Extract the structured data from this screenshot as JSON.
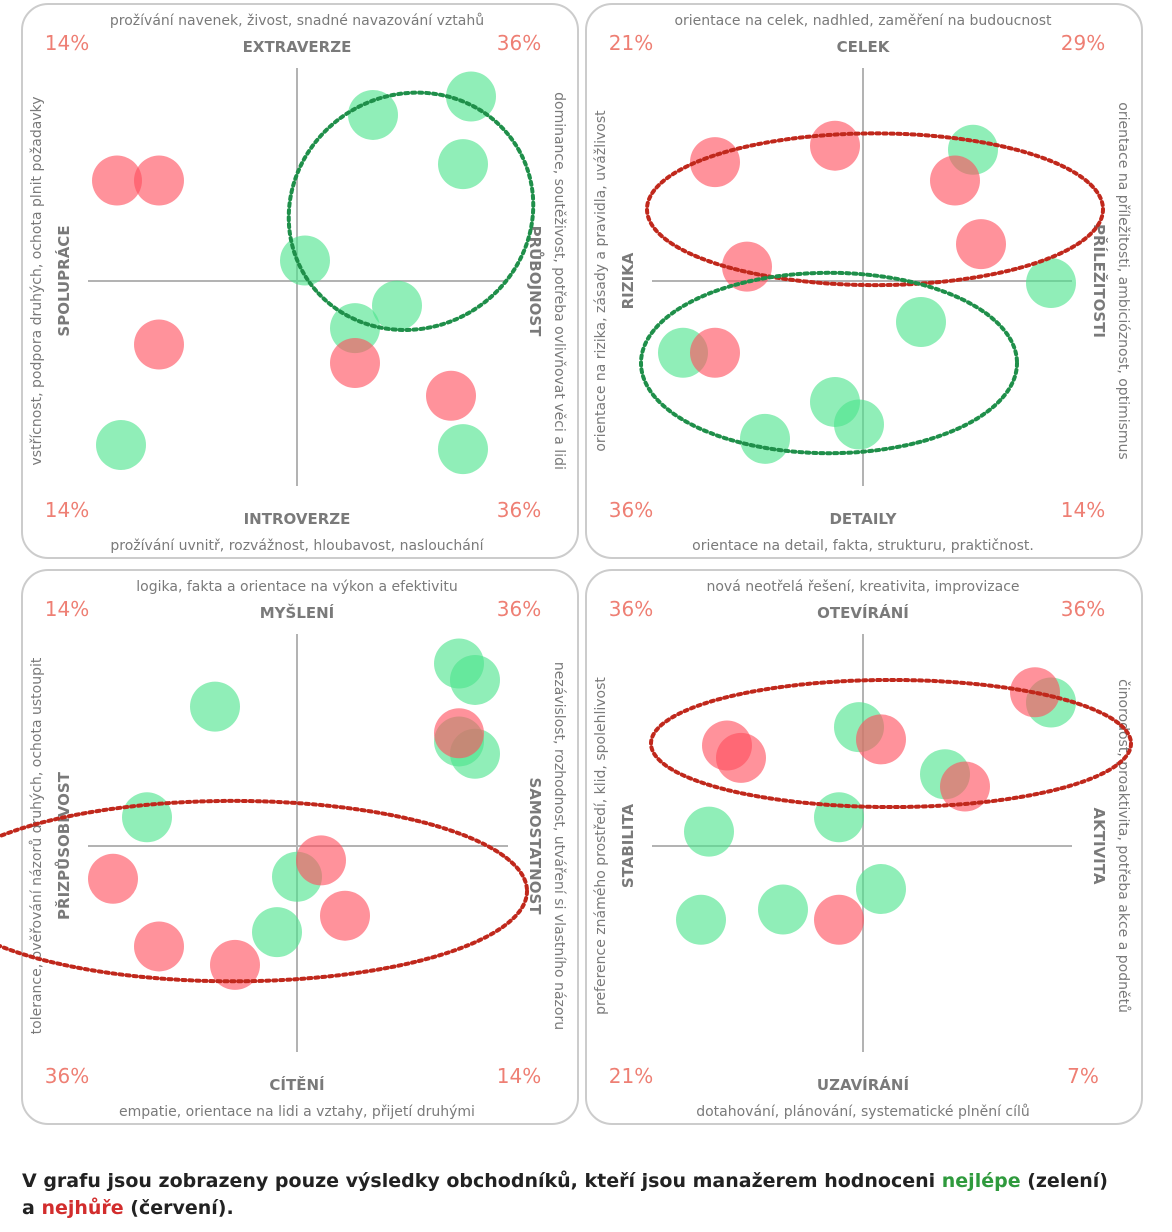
{
  "colors": {
    "best_point": "#4ce38c",
    "worst_point": "#ff4f5e",
    "best_outline": "#1f8f4a",
    "worst_outline": "#c0281c",
    "percent_text": "#ee7f74",
    "axis_text": "#7a7a7a",
    "panel_border": "#cccccc"
  },
  "chart_data": [
    {
      "type": "scatter",
      "axis_top": "EXTRAVERZE",
      "axis_bottom": "INTROVERZE",
      "axis_left": "SPOLUPRÁCE",
      "axis_right": "PRŮBOJNOST",
      "desc_top": "prožívání navenek, živost, snadné navazování vztahů",
      "desc_bottom": "prožívání uvnitř, rozvážnost, hloubavost, naslouchání",
      "desc_left": "vstřícnost, podpora druhých, ochota plnit požadavky",
      "desc_right": "dominance, soutěživost, potřeba ovlivňovat věci a lidi",
      "pct_tl": "14%",
      "pct_tr": "36%",
      "pct_bl": "14%",
      "pct_br": "36%",
      "xlim": [
        -1,
        1
      ],
      "ylim": [
        -1,
        1
      ],
      "series": [
        {
          "group": "best",
          "points": [
            [
              0.87,
              0.9
            ],
            [
              0.38,
              0.81
            ],
            [
              0.83,
              0.57
            ],
            [
              0.04,
              0.1
            ],
            [
              0.5,
              -0.12
            ],
            [
              0.29,
              -0.23
            ],
            [
              -0.88,
              -0.8
            ],
            [
              0.83,
              -0.82
            ]
          ]
        },
        {
          "group": "worst",
          "points": [
            [
              -0.9,
              0.49
            ],
            [
              -0.69,
              0.49
            ],
            [
              -0.69,
              -0.31
            ],
            [
              0.29,
              -0.4
            ],
            [
              0.77,
              -0.56
            ]
          ]
        }
      ],
      "ellipses": [
        {
          "group": "best",
          "cx": 0.57,
          "cy": 0.34,
          "rx": 0.62,
          "ry": 0.57,
          "rotate": -30
        }
      ]
    },
    {
      "type": "scatter",
      "axis_top": "CELEK",
      "axis_bottom": "DETAILY",
      "axis_left": "RIZIKA",
      "axis_right": "PŘÍLEŽITOSTI",
      "desc_top": "orientace na celek, nadhled, zaměření na budoucnost",
      "desc_bottom": "orientace na detail, fakta, strukturu, praktičnost.",
      "desc_left": "orientace na rizika, zásady a pravidla, uvážlivost",
      "desc_right": "orientace na příležitosti, ambicióznost, optimismus",
      "pct_tl": "21%",
      "pct_tr": "29%",
      "pct_bl": "36%",
      "pct_br": "14%",
      "xlim": [
        -1,
        1
      ],
      "ylim": [
        -1,
        1
      ],
      "series": [
        {
          "group": "best",
          "points": [
            [
              0.55,
              0.64
            ],
            [
              0.94,
              -0.01
            ],
            [
              0.29,
              -0.2
            ],
            [
              -0.9,
              -0.35
            ],
            [
              -0.14,
              -0.59
            ],
            [
              -0.02,
              -0.7
            ],
            [
              -0.49,
              -0.77
            ]
          ]
        },
        {
          "group": "worst",
          "points": [
            [
              -0.74,
              0.58
            ],
            [
              -0.14,
              0.66
            ],
            [
              0.46,
              0.49
            ],
            [
              0.59,
              0.18
            ],
            [
              -0.58,
              0.07
            ],
            [
              -0.74,
              -0.35
            ]
          ]
        }
      ],
      "ellipses": [
        {
          "group": "worst",
          "cx": 0.06,
          "cy": 0.35,
          "rx": 1.14,
          "ry": 0.37,
          "rotate": 0
        },
        {
          "group": "best",
          "cx": -0.17,
          "cy": -0.4,
          "rx": 0.94,
          "ry": 0.44,
          "rotate": 0
        }
      ]
    },
    {
      "type": "scatter",
      "axis_top": "MYŠLENÍ",
      "axis_bottom": "CÍTĚNÍ",
      "axis_left": "PŘIZPŮSOBIVOST",
      "axis_right": "SAMOSTATNOST",
      "desc_top": "logika, fakta a orientace na výkon a efektivitu",
      "desc_bottom": "empatie, orientace na lidi a vztahy, přijetí druhými",
      "desc_left": "tolerance, ověřování názorů druhých, ochota ustoupit",
      "desc_right": "nezávislost, rozhodnost, utváření si vlastního názoru",
      "pct_tl": "14%",
      "pct_tr": "36%",
      "pct_bl": "36%",
      "pct_br": "14%",
      "xlim": [
        -1,
        1
      ],
      "ylim": [
        -1,
        1
      ],
      "series": [
        {
          "group": "best",
          "points": [
            [
              0.81,
              0.89
            ],
            [
              0.89,
              0.81
            ],
            [
              -0.41,
              0.68
            ],
            [
              0.81,
              0.51
            ],
            [
              0.89,
              0.45
            ],
            [
              -0.75,
              0.14
            ],
            [
              0.0,
              -0.15
            ],
            [
              -0.1,
              -0.42
            ]
          ]
        },
        {
          "group": "worst",
          "points": [
            [
              0.81,
              0.55
            ],
            [
              0.12,
              -0.07
            ],
            [
              -0.92,
              -0.16
            ],
            [
              0.24,
              -0.34
            ],
            [
              -0.69,
              -0.49
            ],
            [
              -0.31,
              -0.58
            ]
          ]
        }
      ],
      "ellipses": [
        {
          "group": "worst",
          "cx": -0.32,
          "cy": -0.22,
          "rx": 1.47,
          "ry": 0.44,
          "rotate": 0
        }
      ]
    },
    {
      "type": "scatter",
      "axis_top": "OTEVÍRÁNÍ",
      "axis_bottom": "UZAVÍRÁNÍ",
      "axis_left": "STABILITA",
      "axis_right": "AKTIVITA",
      "desc_top": "nová neotřelá řešení, kreativita, improvizace",
      "desc_bottom": "dotahování, plánování, systematické plnění cílů",
      "desc_left": "preference známého prostředí, klid, spolehlivost",
      "desc_right": "činorodost, proaktivita, potřeba akce a podnětů",
      "pct_tl": "36%",
      "pct_tr": "36%",
      "pct_bl": "21%",
      "pct_br": "7%",
      "xlim": [
        -1,
        1
      ],
      "ylim": [
        -1,
        1
      ],
      "series": [
        {
          "group": "best",
          "points": [
            [
              0.94,
              0.7
            ],
            [
              -0.02,
              0.58
            ],
            [
              0.41,
              0.35
            ],
            [
              -0.12,
              0.14
            ],
            [
              -0.77,
              0.07
            ],
            [
              0.09,
              -0.21
            ],
            [
              -0.4,
              -0.31
            ],
            [
              -0.81,
              -0.36
            ]
          ]
        },
        {
          "group": "worst",
          "points": [
            [
              0.86,
              0.75
            ],
            [
              -0.68,
              0.49
            ],
            [
              0.09,
              0.52
            ],
            [
              -0.61,
              0.43
            ],
            [
              0.51,
              0.29
            ],
            [
              -0.12,
              -0.36
            ]
          ]
        }
      ],
      "ellipses": [
        {
          "group": "worst",
          "cx": 0.14,
          "cy": 0.5,
          "rx": 1.2,
          "ry": 0.31,
          "rotate": 0
        }
      ]
    }
  ],
  "caption": {
    "part1": "V grafu jsou zobrazeny pouze výsledky obchodníků, kteří jsou manažerem hodnoceni ",
    "best_word": "nejlépe",
    "part2": " (zelení)",
    "part3": "a ",
    "worst_word": "nejhůře",
    "part4": " (červení)."
  }
}
